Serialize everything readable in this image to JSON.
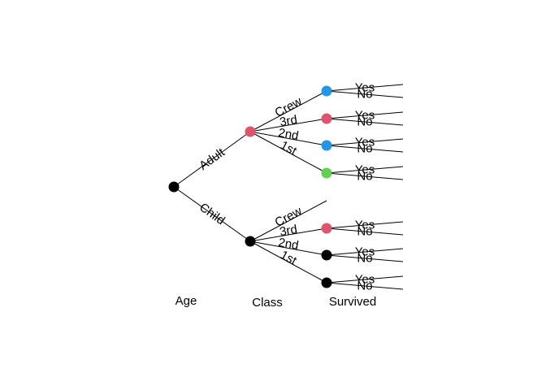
{
  "diagram": {
    "levels": [
      "Age",
      "Class",
      "Survived"
    ],
    "root": {
      "color": "#000000"
    },
    "age_branches": [
      {
        "label": "Adult",
        "color": "#DF536B",
        "classes": [
          {
            "label": "Crew",
            "color": "#2297E6",
            "outcomes": [
              "Yes",
              "No"
            ]
          },
          {
            "label": "3rd",
            "color": "#DF536B",
            "outcomes": [
              "Yes",
              "No"
            ]
          },
          {
            "label": "2nd",
            "color": "#2297E6",
            "outcomes": [
              "Yes",
              "No"
            ]
          },
          {
            "label": "1st",
            "color": "#61D04F",
            "outcomes": [
              "Yes",
              "No"
            ]
          }
        ]
      },
      {
        "label": "Child",
        "color": "#000000",
        "classes": [
          {
            "label": "Crew",
            "color": null,
            "outcomes": []
          },
          {
            "label": "3rd",
            "color": "#DF536B",
            "outcomes": [
              "Yes",
              "No"
            ]
          },
          {
            "label": "2nd",
            "color": "#000000",
            "outcomes": [
              "Yes",
              "No"
            ]
          },
          {
            "label": "1st",
            "color": "#000000",
            "outcomes": [
              "Yes",
              "No"
            ]
          }
        ]
      }
    ]
  }
}
